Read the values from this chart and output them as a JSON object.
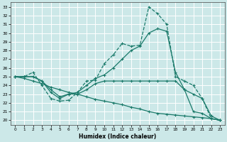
{
  "xlabel": "Humidex (Indice chaleur)",
  "bg_color": "#cce8e8",
  "grid_color": "#ffffff",
  "line_color": "#1a7a6a",
  "xlim": [
    -0.5,
    23.5
  ],
  "ylim": [
    19.5,
    33.5
  ],
  "yticks": [
    20,
    21,
    22,
    23,
    24,
    25,
    26,
    27,
    28,
    29,
    30,
    31,
    32,
    33
  ],
  "xticks": [
    0,
    1,
    2,
    3,
    4,
    5,
    6,
    7,
    8,
    9,
    10,
    11,
    12,
    13,
    14,
    15,
    16,
    17,
    18,
    19,
    20,
    21,
    22,
    23
  ],
  "line1_x": [
    0,
    1,
    2,
    3,
    4,
    5,
    6,
    7,
    8,
    9,
    10,
    11,
    12,
    13,
    14,
    15,
    16,
    17,
    18,
    19,
    20,
    21,
    22,
    23
  ],
  "line1_y": [
    25.0,
    25.0,
    25.5,
    24.0,
    22.5,
    22.2,
    22.3,
    23.2,
    24.5,
    24.6,
    26.5,
    27.5,
    28.8,
    28.5,
    28.6,
    33.0,
    32.2,
    31.0,
    25.0,
    24.5,
    24.0,
    22.5,
    20.2,
    20.0
  ],
  "line1_style": "--",
  "line2_x": [
    0,
    1,
    2,
    3,
    4,
    5,
    6,
    7,
    8,
    9,
    10,
    11,
    12,
    13,
    14,
    15,
    16,
    17,
    18,
    19,
    20,
    21,
    22,
    23
  ],
  "line2_y": [
    25.0,
    25.0,
    25.0,
    24.5,
    23.2,
    22.5,
    23.0,
    23.0,
    23.5,
    24.2,
    24.5,
    24.5,
    24.5,
    24.5,
    24.5,
    24.5,
    24.5,
    24.5,
    24.5,
    23.5,
    23.0,
    22.5,
    20.5,
    20.0
  ],
  "line2_style": "-",
  "line3_x": [
    0,
    1,
    2,
    3,
    4,
    5,
    6,
    7,
    8,
    9,
    10,
    11,
    12,
    13,
    14,
    15,
    16,
    17,
    18,
    19,
    20,
    21,
    22,
    23
  ],
  "line3_y": [
    25.0,
    25.0,
    25.0,
    24.5,
    23.5,
    22.7,
    23.0,
    23.2,
    24.0,
    24.8,
    25.2,
    26.0,
    27.0,
    28.0,
    28.5,
    30.0,
    30.5,
    30.2,
    25.5,
    23.5,
    21.0,
    20.8,
    20.2,
    20.0
  ],
  "line3_style": "-",
  "line4_x": [
    0,
    1,
    2,
    3,
    4,
    5,
    6,
    7,
    8,
    9,
    10,
    11,
    12,
    13,
    14,
    15,
    16,
    17,
    18,
    19,
    20,
    21,
    22,
    23
  ],
  "line4_y": [
    25.0,
    24.8,
    24.5,
    24.2,
    23.8,
    23.5,
    23.2,
    23.0,
    22.7,
    22.4,
    22.2,
    22.0,
    21.8,
    21.5,
    21.3,
    21.0,
    20.8,
    20.7,
    20.6,
    20.5,
    20.4,
    20.3,
    20.2,
    20.0
  ],
  "line4_style": "-"
}
